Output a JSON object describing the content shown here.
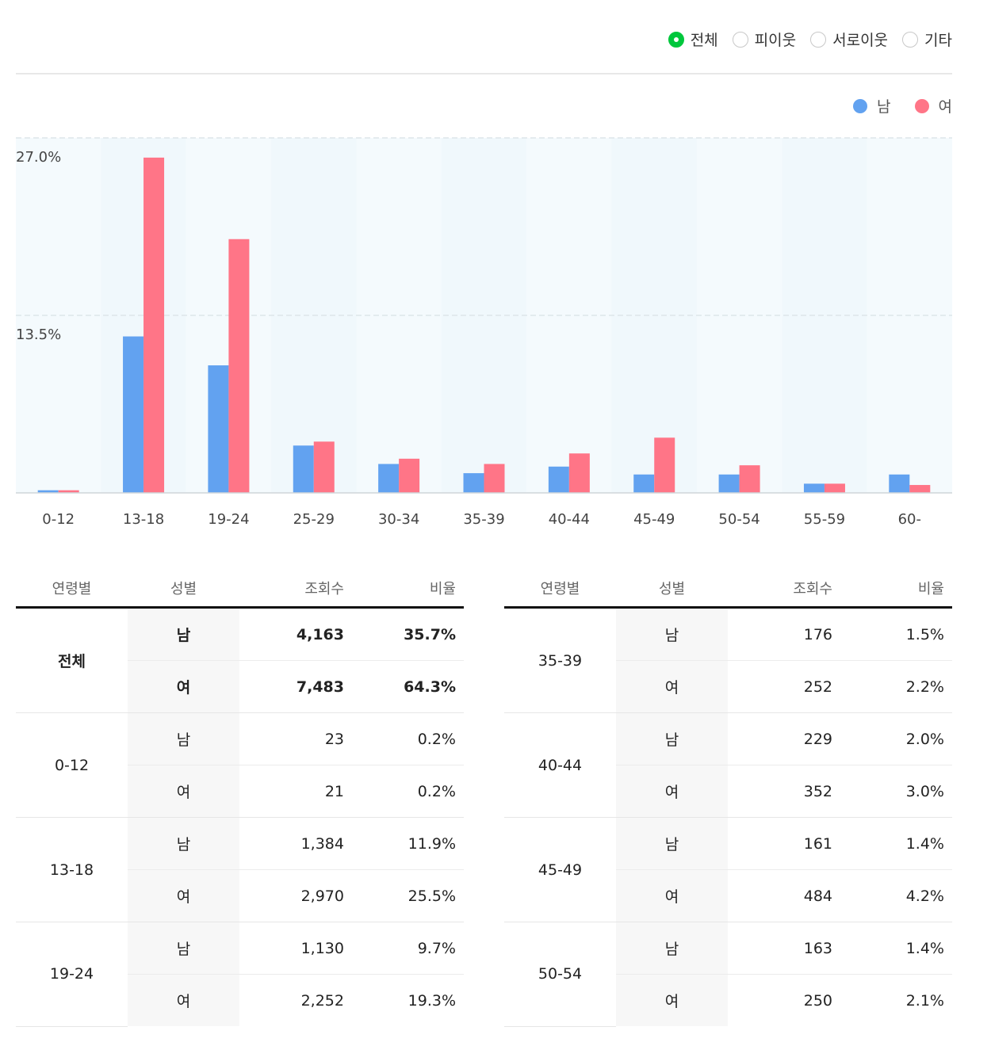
{
  "filters": {
    "options": [
      "전체",
      "피이웃",
      "서로이웃",
      "기타"
    ],
    "selected": 0
  },
  "legend": {
    "male": "남",
    "female": "여"
  },
  "colors": {
    "male": "#62a2f0",
    "female": "#ff7587",
    "accent": "#00c73c"
  },
  "chart_data": {
    "type": "bar",
    "categories": [
      "0-12",
      "13-18",
      "19-24",
      "25-29",
      "30-34",
      "35-39",
      "40-44",
      "45-49",
      "50-54",
      "55-59",
      "60-"
    ],
    "series": [
      {
        "name": "남",
        "values": [
          0.2,
          11.9,
          9.7,
          3.6,
          2.2,
          1.5,
          2.0,
          1.4,
          1.4,
          0.7,
          1.4
        ]
      },
      {
        "name": "여",
        "values": [
          0.2,
          25.5,
          19.3,
          3.9,
          2.6,
          2.2,
          3.0,
          4.2,
          2.1,
          0.7,
          0.6
        ]
      }
    ],
    "yticks": [
      "27.0%",
      "13.5%"
    ],
    "ylim": [
      0,
      27.0
    ],
    "legend_position": "top-right"
  },
  "table_headers": {
    "age": "연령별",
    "gender": "성별",
    "views": "조회수",
    "ratio": "비율"
  },
  "table_left": [
    {
      "age": "전체",
      "bold": true,
      "rows": [
        {
          "gender": "남",
          "views": "4,163",
          "ratio": "35.7%"
        },
        {
          "gender": "여",
          "views": "7,483",
          "ratio": "64.3%"
        }
      ]
    },
    {
      "age": "0-12",
      "rows": [
        {
          "gender": "남",
          "views": "23",
          "ratio": "0.2%"
        },
        {
          "gender": "여",
          "views": "21",
          "ratio": "0.2%"
        }
      ]
    },
    {
      "age": "13-18",
      "rows": [
        {
          "gender": "남",
          "views": "1,384",
          "ratio": "11.9%"
        },
        {
          "gender": "여",
          "views": "2,970",
          "ratio": "25.5%"
        }
      ]
    },
    {
      "age": "19-24",
      "rows": [
        {
          "gender": "남",
          "views": "1,130",
          "ratio": "9.7%"
        },
        {
          "gender": "여",
          "views": "2,252",
          "ratio": "19.3%"
        }
      ]
    }
  ],
  "table_right": [
    {
      "age": "35-39",
      "rows": [
        {
          "gender": "남",
          "views": "176",
          "ratio": "1.5%"
        },
        {
          "gender": "여",
          "views": "252",
          "ratio": "2.2%"
        }
      ]
    },
    {
      "age": "40-44",
      "rows": [
        {
          "gender": "남",
          "views": "229",
          "ratio": "2.0%"
        },
        {
          "gender": "여",
          "views": "352",
          "ratio": "3.0%"
        }
      ]
    },
    {
      "age": "45-49",
      "rows": [
        {
          "gender": "남",
          "views": "161",
          "ratio": "1.4%"
        },
        {
          "gender": "여",
          "views": "484",
          "ratio": "4.2%"
        }
      ]
    },
    {
      "age": "50-54",
      "rows": [
        {
          "gender": "남",
          "views": "163",
          "ratio": "1.4%"
        },
        {
          "gender": "여",
          "views": "250",
          "ratio": "2.1%"
        }
      ]
    }
  ]
}
